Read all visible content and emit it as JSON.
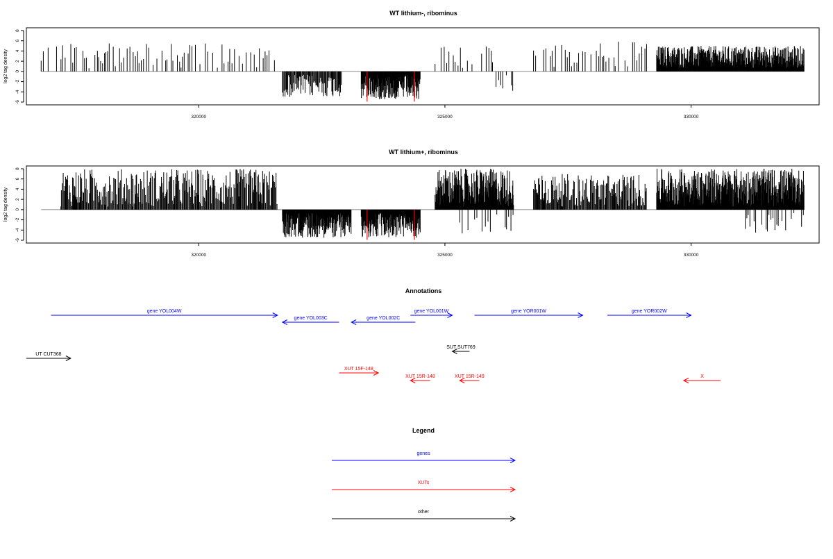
{
  "chart_data": [
    {
      "type": "bar",
      "title": "WT lithium-, ribominus",
      "xlabel": "",
      "ylabel": "log2 tag density",
      "xlim": [
        316500,
        332600
      ],
      "ylim": [
        -6,
        8
      ],
      "x_ticks": [
        320000,
        325000,
        330000
      ],
      "x_tick_labels": [
        "320000",
        "325000",
        "330000"
      ],
      "y_ticks": [
        -6,
        -4,
        -2,
        0,
        2,
        4,
        6,
        8
      ],
      "y_tick_labels": [
        "-6",
        "-4",
        "-2",
        "0",
        "2",
        "4",
        "6",
        "8"
      ],
      "grid": false,
      "bar_color": "#000000",
      "highlight_color": "#ff0000",
      "highlights": [
        [
          323420,
          -5.9
        ],
        [
          324380,
          -5.9
        ]
      ],
      "segments": [
        {
          "from": 316800,
          "to": 321600,
          "sign": 1,
          "density": "sparse",
          "max": 5.5
        },
        {
          "from": 321700,
          "to": 322900,
          "sign": -1,
          "density": "medium",
          "max": 5.0
        },
        {
          "from": 323300,
          "to": 324500,
          "sign": -1,
          "density": "dense",
          "max": 5.5
        },
        {
          "from": 324800,
          "to": 326000,
          "sign": 1,
          "density": "sparse",
          "max": 5.0
        },
        {
          "from": 325900,
          "to": 326400,
          "sign": -1,
          "density": "sparse",
          "max": 4.0
        },
        {
          "from": 326800,
          "to": 329100,
          "sign": 1,
          "density": "sparse",
          "max": 6.0
        },
        {
          "from": 329300,
          "to": 332300,
          "sign": 1,
          "density": "dense",
          "max": 5.0
        }
      ]
    },
    {
      "type": "bar",
      "title": "WT lithium+, ribominus",
      "xlabel": "",
      "ylabel": "log2 tag density",
      "xlim": [
        316500,
        332600
      ],
      "ylim": [
        -6,
        8
      ],
      "x_ticks": [
        320000,
        325000,
        330000
      ],
      "x_tick_labels": [
        "320000",
        "325000",
        "330000"
      ],
      "y_ticks": [
        -6,
        -4,
        -2,
        0,
        2,
        4,
        6,
        8
      ],
      "y_tick_labels": [
        "-6",
        "-4",
        "-2",
        "0",
        "2",
        "4",
        "6",
        "8"
      ],
      "grid": false,
      "bar_color": "#000000",
      "highlight_color": "#ff0000",
      "highlights": [
        [
          323420,
          -5.9
        ],
        [
          324380,
          -5.9
        ]
      ],
      "segments": [
        {
          "from": 317200,
          "to": 321600,
          "sign": 1,
          "density": "medium",
          "max": 8.0
        },
        {
          "from": 321700,
          "to": 323100,
          "sign": -1,
          "density": "dense",
          "max": 5.5
        },
        {
          "from": 323300,
          "to": 324500,
          "sign": -1,
          "density": "dense",
          "max": 5.5
        },
        {
          "from": 324800,
          "to": 326400,
          "sign": 1,
          "density": "dense",
          "max": 8.0
        },
        {
          "from": 325300,
          "to": 326400,
          "sign": -1,
          "density": "sparse",
          "max": 5.0
        },
        {
          "from": 326800,
          "to": 329100,
          "sign": 1,
          "density": "medium",
          "max": 7.0
        },
        {
          "from": 329300,
          "to": 332300,
          "sign": 1,
          "density": "dense",
          "max": 8.0
        },
        {
          "from": 331100,
          "to": 332300,
          "sign": -1,
          "density": "sparse",
          "max": 4.5
        }
      ]
    }
  ],
  "annotations": {
    "title": "Annotations",
    "items": [
      {
        "label": "gene YOL004W",
        "start": 317000,
        "end": 321600,
        "dir": "right",
        "color": "#0000ff",
        "row": 0
      },
      {
        "label": "gene YOL003C",
        "start": 321700,
        "end": 322850,
        "dir": "left",
        "color": "#0000ff",
        "row": 1
      },
      {
        "label": "gene YOL002C",
        "start": 323100,
        "end": 324400,
        "dir": "left",
        "color": "#0000ff",
        "row": 1
      },
      {
        "label": "gene YOL001W",
        "start": 324300,
        "end": 325150,
        "dir": "right",
        "color": "#0000ff",
        "row": 0
      },
      {
        "label": "gene YOR001W",
        "start": 325600,
        "end": 327800,
        "dir": "right",
        "color": "#0000ff",
        "row": 0
      },
      {
        "label": "gene YOR002W",
        "start": 328300,
        "end": 330000,
        "dir": "right",
        "color": "#0000ff",
        "row": 0
      },
      {
        "label": "SUT SUT769",
        "start": 325150,
        "end": 325500,
        "dir": "left",
        "color": "#000000",
        "row": 2
      },
      {
        "label": "UT CUT368",
        "start": 316500,
        "end": 317400,
        "dir": "right",
        "color": "#000000",
        "row": 3
      },
      {
        "label": "XUT 15F-148",
        "start": 322850,
        "end": 323650,
        "dir": "right",
        "color": "#ff0000",
        "row": 4
      },
      {
        "label": "XUT 15R-148",
        "start": 324300,
        "end": 324700,
        "dir": "left",
        "color": "#ff0000",
        "row": 5
      },
      {
        "label": "XUT 15R-149",
        "start": 325300,
        "end": 325700,
        "dir": "left",
        "color": "#ff0000",
        "row": 5
      },
      {
        "label": "X",
        "start": 329850,
        "end": 330600,
        "dir": "left",
        "color": "#ff0000",
        "row": 5
      }
    ]
  },
  "legend": {
    "title": "Legend",
    "items": [
      {
        "label": "genes",
        "color": "#0000ff"
      },
      {
        "label": "XUTs",
        "color": "#ff0000"
      },
      {
        "label": "other",
        "color": "#000000"
      }
    ]
  }
}
